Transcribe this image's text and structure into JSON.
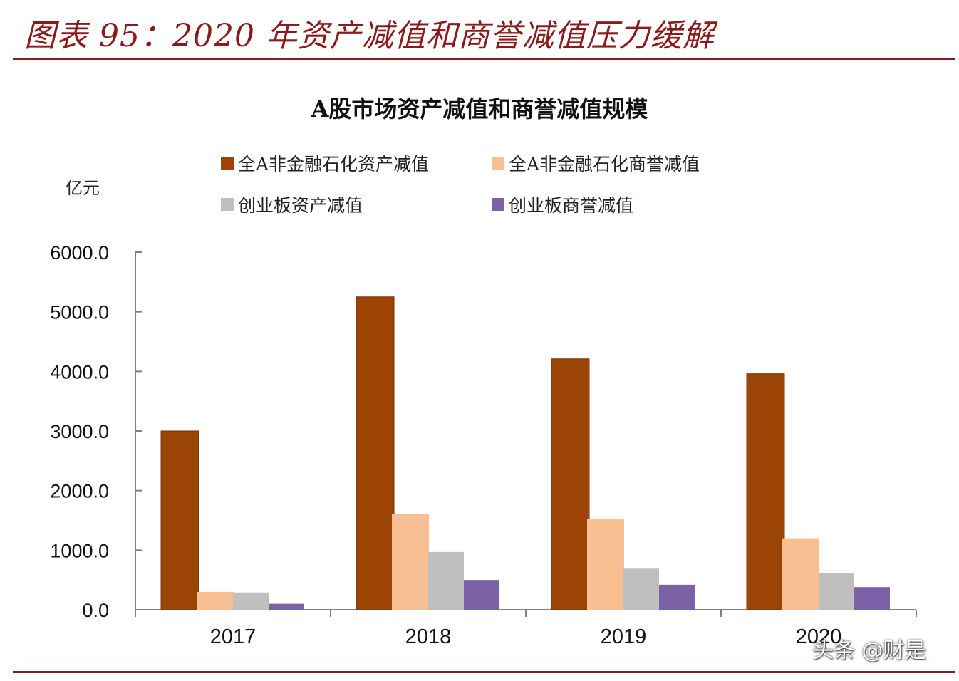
{
  "figure": {
    "title": "图表 95：2020 年资产减值和商誉减值压力缓解",
    "accent_color": "#8b1a1a"
  },
  "chart_data": {
    "type": "bar",
    "title": "A股市场资产减值和商誉减值规模",
    "ylabel": "亿元",
    "xlabel": "",
    "categories": [
      "2017",
      "2018",
      "2019",
      "2020"
    ],
    "ylim": [
      0,
      6000
    ],
    "yticks": [
      "0.0",
      "1000.0",
      "2000.0",
      "3000.0",
      "4000.0",
      "5000.0",
      "6000.0"
    ],
    "grid": false,
    "legend_position": "top",
    "series": [
      {
        "name": "全A非金融石化资产减值",
        "color": "#9c4306",
        "values": [
          3000,
          5250,
          4210,
          3960
        ]
      },
      {
        "name": "全A非金融石化商誉减值",
        "color": "#f8bf92",
        "values": [
          300,
          1610,
          1530,
          1200
        ]
      },
      {
        "name": "创业板资产减值",
        "color": "#bfbfbf",
        "values": [
          290,
          970,
          690,
          610
        ]
      },
      {
        "name": "创业板商誉减值",
        "color": "#7b62a6",
        "values": [
          100,
          500,
          420,
          380
        ]
      }
    ]
  },
  "watermark": "头条 @财是"
}
